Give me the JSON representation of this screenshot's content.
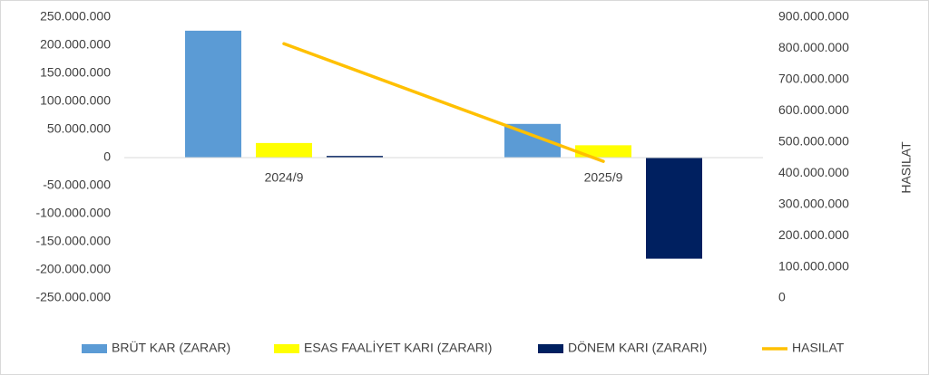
{
  "chart_data": {
    "type": "bar-line",
    "categories": [
      "2024/9",
      "2025/9"
    ],
    "series": [
      {
        "name": "BRÜT KAR (ZARAR)",
        "color": "#5b9bd5",
        "type": "bar",
        "values": [
          226000000,
          60000000
        ]
      },
      {
        "name": "ESAS FAALİYET KARI (ZARARI)",
        "color": "#ffff00",
        "type": "bar",
        "values": [
          26000000,
          22000000
        ]
      },
      {
        "name": "DÖNEM KARI (ZARARI)",
        "color": "#002060",
        "type": "bar",
        "values": [
          3000000,
          -180000000
        ]
      },
      {
        "name": "HASILAT",
        "color": "#ffc000",
        "type": "line",
        "axis": "y2",
        "values": [
          815000000,
          438000000
        ]
      }
    ],
    "ylim": [
      -250000000,
      250000000
    ],
    "yticks": [
      {
        "value": -250000000,
        "label": "-250.000.000"
      },
      {
        "value": -200000000,
        "label": "-200.000.000"
      },
      {
        "value": -150000000,
        "label": "-150.000.000"
      },
      {
        "value": -100000000,
        "label": "-100.000.000"
      },
      {
        "value": -50000000,
        "label": "-50.000.000"
      },
      0,
      {
        "value": 50000000,
        "label": "50.000.000"
      },
      {
        "value": 100000000,
        "label": "100.000.000"
      },
      {
        "value": 150000000,
        "label": "150.000.000"
      },
      {
        "value": 200000000,
        "label": "200.000.000"
      },
      {
        "value": 250000000,
        "label": "250.000.000"
      }
    ],
    "y2lim": [
      0,
      900000000
    ],
    "y2ticks": [
      0,
      {
        "value": 100000000,
        "label": "100.000.000"
      },
      {
        "value": 200000000,
        "label": "200.000.000"
      },
      {
        "value": 300000000,
        "label": "300.000.000"
      },
      {
        "value": 400000000,
        "label": "400.000.000"
      },
      {
        "value": 500000000,
        "label": "500.000.000"
      },
      {
        "value": 600000000,
        "label": "600.000.000"
      },
      {
        "value": 700000000,
        "label": "700.000.000"
      },
      {
        "value": 800000000,
        "label": "800.000.000"
      },
      {
        "value": 900000000,
        "label": "900.000.000"
      }
    ],
    "y2label": "HASILAT",
    "legend": "bottom"
  }
}
